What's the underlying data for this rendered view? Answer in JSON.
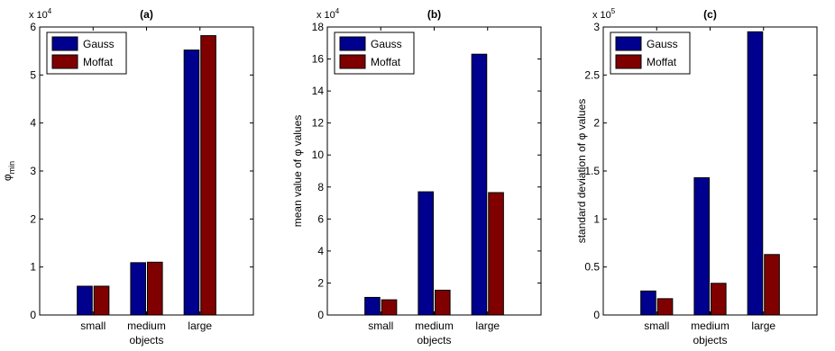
{
  "chart_data": [
    {
      "type": "bar",
      "title": "(a)",
      "ylabel": "φ",
      "ylabel_sub": "min",
      "xlabel": "objects",
      "categories": [
        "small",
        "medium",
        "large"
      ],
      "exponent_label": "x 10",
      "exponent_power": "4",
      "ylim": [
        0,
        60000
      ],
      "yticks": [
        0,
        10000,
        20000,
        30000,
        40000,
        50000,
        60000
      ],
      "ytick_labels": [
        "0",
        "1",
        "2",
        "3",
        "4",
        "5",
        "6"
      ],
      "legend_position": "top-left",
      "series": [
        {
          "name": "Gauss",
          "color": "#00008f",
          "values": [
            6000,
            10900,
            55200
          ]
        },
        {
          "name": "Moffat",
          "color": "#800000",
          "values": [
            6000,
            11000,
            58200
          ]
        }
      ]
    },
    {
      "type": "bar",
      "title": "(b)",
      "ylabel": "mean value of φ values",
      "ylabel_sub": "",
      "xlabel": "objects",
      "categories": [
        "small",
        "medium",
        "large"
      ],
      "exponent_label": "x 10",
      "exponent_power": "4",
      "ylim": [
        0,
        180000
      ],
      "yticks": [
        0,
        20000,
        40000,
        60000,
        80000,
        100000,
        120000,
        140000,
        160000,
        180000
      ],
      "ytick_labels": [
        "0",
        "2",
        "4",
        "6",
        "8",
        "10",
        "12",
        "14",
        "16",
        "18"
      ],
      "legend_position": "top-left",
      "series": [
        {
          "name": "Gauss",
          "color": "#00008f",
          "values": [
            11000,
            77000,
            163000
          ]
        },
        {
          "name": "Moffat",
          "color": "#800000",
          "values": [
            9500,
            15500,
            76500
          ]
        }
      ]
    },
    {
      "type": "bar",
      "title": "(c)",
      "ylabel": "standard deviation of φ values",
      "ylabel_sub": "",
      "xlabel": "objects",
      "categories": [
        "small",
        "medium",
        "large"
      ],
      "exponent_label": "x 10",
      "exponent_power": "5",
      "ylim": [
        0,
        300000
      ],
      "yticks": [
        0,
        50000,
        100000,
        150000,
        200000,
        250000,
        300000
      ],
      "ytick_labels": [
        "0",
        "0.5",
        "1",
        "1.5",
        "2",
        "2.5",
        "3"
      ],
      "legend_position": "top-left",
      "series": [
        {
          "name": "Gauss",
          "color": "#00008f",
          "values": [
            25000,
            143000,
            295000
          ]
        },
        {
          "name": "Moffat",
          "color": "#800000",
          "values": [
            17000,
            33000,
            63000
          ]
        }
      ]
    }
  ]
}
